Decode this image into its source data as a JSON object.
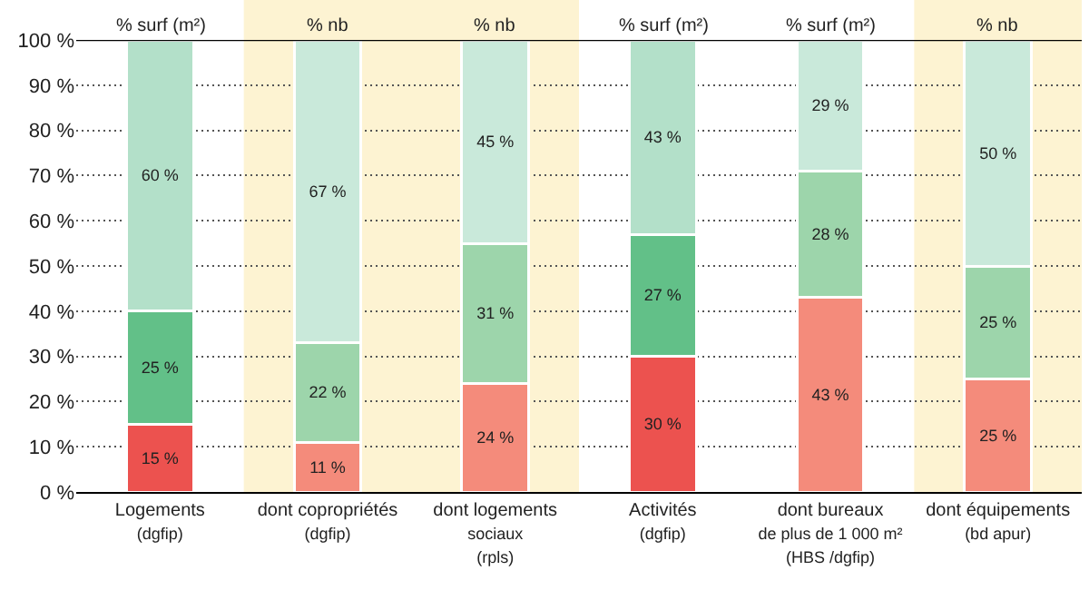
{
  "chart_data": {
    "type": "bar",
    "stacked": true,
    "relative": false,
    "categories": [
      "Logements\n(dgfip)",
      "dont copropriétés\n(dgfip)",
      "dont logements\nsociaux\n(rpls)",
      "Activités\n(dgfip)",
      "dont bureaux\nde plus de 1 000 m²\n(HBS /dgfip)",
      "dont équipements\n(bd apur)"
    ],
    "series": [
      {
        "colors": [
          "#ec524f",
          "#f48b7b",
          "#f48b7b",
          "#ec524f",
          "#f48b7b",
          "#f48b7b"
        ],
        "values": [
          15,
          11,
          24,
          30,
          43,
          25
        ],
        "value_labels": [
          "15 %",
          "11 %",
          "24 %",
          "30 %",
          "43 %",
          "25 %"
        ]
      },
      {
        "colors": [
          "#62c088",
          "#9dd5ab",
          "#9dd5ab",
          "#62c088",
          "#9dd5ab",
          "#9dd5ab"
        ],
        "values": [
          25,
          22,
          31,
          27,
          28,
          25
        ],
        "value_labels": [
          "25 %",
          "22 %",
          "31 %",
          "27 %",
          "28 %",
          "25 %"
        ]
      },
      {
        "colors": [
          "#b3e0c9",
          "#c9e9da",
          "#c9e9da",
          "#b3e0c9",
          "#c9e9da",
          "#c9e9da"
        ],
        "values": [
          60,
          67,
          45,
          43,
          29,
          50
        ],
        "value_labels": [
          "60 %",
          "67 %",
          "45 %",
          "43 %",
          "29 %",
          "50 %"
        ]
      }
    ],
    "ylim": [
      0,
      100
    ],
    "yticks": [
      {
        "value": 0,
        "label": "0 %"
      },
      {
        "value": 10,
        "label": "10 %"
      },
      {
        "value": 20,
        "label": "20 %"
      },
      {
        "value": 30,
        "label": "30 %"
      },
      {
        "value": 40,
        "label": "40 %"
      },
      {
        "value": 50,
        "label": "50 %"
      },
      {
        "value": 60,
        "label": "60 %"
      },
      {
        "value": 70,
        "label": "70 %"
      },
      {
        "value": 80,
        "label": "80 %"
      },
      {
        "value": 90,
        "label": "90 %"
      },
      {
        "value": 100,
        "label": "100 %"
      }
    ],
    "grid": "y",
    "bands": [
      {
        "axis": "x",
        "from": "dont copropriétés\n(dgfip)",
        "to": "dont logements\nsociaux\n(rpls)",
        "label": null,
        "color": "#fdf3d2"
      },
      {
        "axis": "x",
        "from": "dont équipements\n(bd apur)",
        "to": "dont équipements\n(bd apur)",
        "label": null,
        "color": "#fdf3d2"
      }
    ],
    "annotations": [
      "% surf (m²)",
      "% nb",
      "% nb",
      "% surf (m²)",
      "% surf (m²)",
      "% nb"
    ]
  }
}
